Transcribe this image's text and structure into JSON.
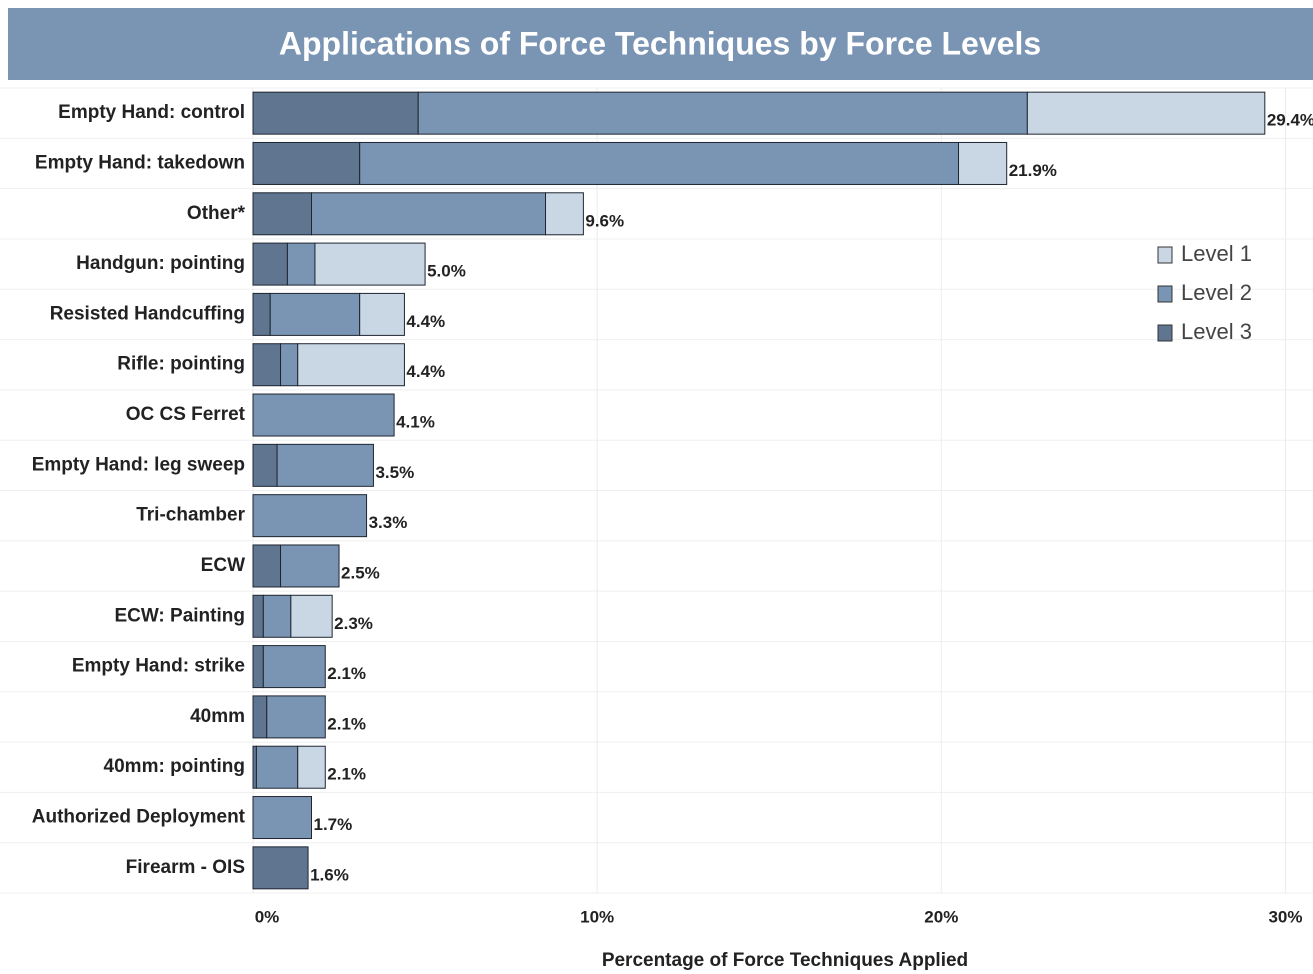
{
  "chart_data": {
    "type": "stacked-bar-horizontal",
    "title": "Applications of Force Techniques by Force Levels",
    "x_label": "Percentage of Force Techniques Applied",
    "categories": [
      "Empty Hand: control",
      "Empty Hand: takedown",
      "Other*",
      "Handgun: pointing",
      "Resisted Handcuffing",
      "Rifle: pointing",
      "OC CS Ferret",
      "Empty Hand: leg sweep",
      "Tri-chamber",
      "ECW",
      "ECW: Painting",
      "Empty Hand: strike",
      "40mm",
      "40mm: pointing",
      "Authorized Deployment",
      "Firearm - OIS"
    ],
    "series": [
      {
        "name": "Level 3",
        "color": "#5f7590",
        "values": [
          4.8,
          3.1,
          1.7,
          1.0,
          0.5,
          0.8,
          0,
          0.7,
          0,
          0.8,
          0.3,
          0.3,
          0.4,
          0.1,
          0,
          1.6
        ]
      },
      {
        "name": "Level 2",
        "color": "#7a94b4",
        "values": [
          17.7,
          17.4,
          6.8,
          0.8,
          2.6,
          0.5,
          4.1,
          2.8,
          3.3,
          1.7,
          0.8,
          1.8,
          1.7,
          1.2,
          1.7,
          0
        ]
      },
      {
        "name": "Level 1",
        "color": "#c9d7e5",
        "values": [
          6.9,
          1.4,
          1.1,
          3.2,
          1.3,
          3.1,
          0,
          0,
          0,
          0,
          1.2,
          0,
          0,
          0.8,
          0,
          0
        ]
      }
    ],
    "totals": {
      "values": [
        29.4,
        21.9,
        9.6,
        5.0,
        4.4,
        4.4,
        4.1,
        3.5,
        3.3,
        2.5,
        2.3,
        2.1,
        2.1,
        2.1,
        1.7,
        1.6
      ],
      "value_labels": [
        "29.4%",
        "21.9%",
        "9.6%",
        "5.0%",
        "4.4%",
        "4.4%",
        "4.1%",
        "3.5%",
        "3.3%",
        "2.5%",
        "2.3%",
        "2.1%",
        "2.1%",
        "2.1%",
        "1.7%",
        "1.6%"
      ]
    },
    "xlim": [
      0,
      30.8
    ],
    "xticks": [
      {
        "value": 0,
        "label": "0%"
      },
      {
        "value": 10,
        "label": "10%"
      },
      {
        "value": 20,
        "label": "20%"
      },
      {
        "value": 30,
        "label": "30%"
      }
    ],
    "grid": true,
    "legend_position": "upper-right"
  }
}
